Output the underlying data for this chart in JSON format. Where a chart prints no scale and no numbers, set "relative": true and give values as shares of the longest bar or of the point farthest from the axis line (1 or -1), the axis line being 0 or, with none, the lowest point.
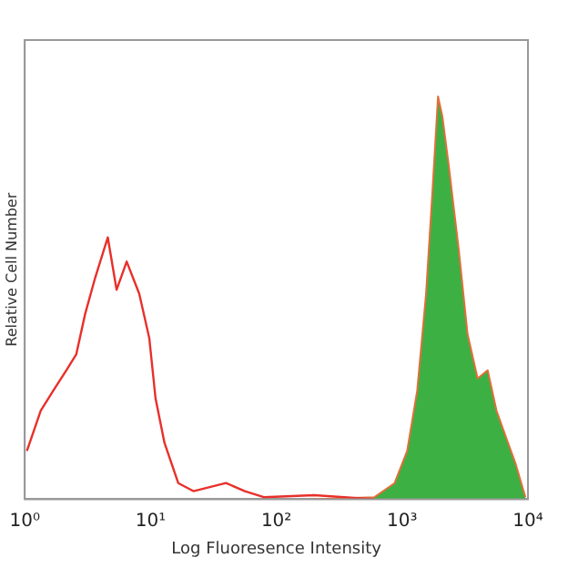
{
  "chart_data": {
    "type": "line",
    "relative": true,
    "xlabel": "Log Fluoresence Intensity",
    "ylabel": "Relative Cell Number",
    "log": "x",
    "xlim": [
      1,
      10000
    ],
    "xticks": [
      {
        "value": 1,
        "label": "10⁰"
      },
      {
        "value": 10,
        "label": "10¹"
      },
      {
        "value": 100,
        "label": "10²"
      },
      {
        "value": 1000,
        "label": "10³"
      },
      {
        "value": 10000,
        "label": "10⁴"
      }
    ],
    "grid": false,
    "legend": false,
    "marker": "none",
    "series": [
      {
        "color": "#e8302a",
        "x": [
          1.04,
          1.34,
          1.69,
          2.14,
          2.57,
          3.02,
          3.63,
          4.57,
          5.37,
          6.46,
          8.13,
          9.77,
          10.96,
          12.9,
          16.6,
          21.9,
          39.8,
          56.2,
          79.4,
          200,
          600
        ],
        "values": [
          0.12,
          0.22,
          0.27,
          0.32,
          0.36,
          0.46,
          0.55,
          0.65,
          0.52,
          0.59,
          0.51,
          0.4,
          0.25,
          0.14,
          0.04,
          0.02,
          0.04,
          0.02,
          0.005,
          0.01,
          0
        ]
      },
      {
        "type": "area",
        "color": "#3cb043",
        "x": [
          191,
          603,
          871,
          1096,
          1318,
          1549,
          1738,
          1928,
          2089,
          2344,
          2818,
          3311,
          3981,
          4786,
          5623,
          6761,
          7943,
          9550
        ],
        "values": [
          0,
          0.005,
          0.04,
          0.12,
          0.27,
          0.51,
          0.76,
          1,
          0.95,
          0.83,
          0.62,
          0.41,
          0.3,
          0.32,
          0.22,
          0.15,
          0.09,
          0.005
        ]
      }
    ]
  }
}
